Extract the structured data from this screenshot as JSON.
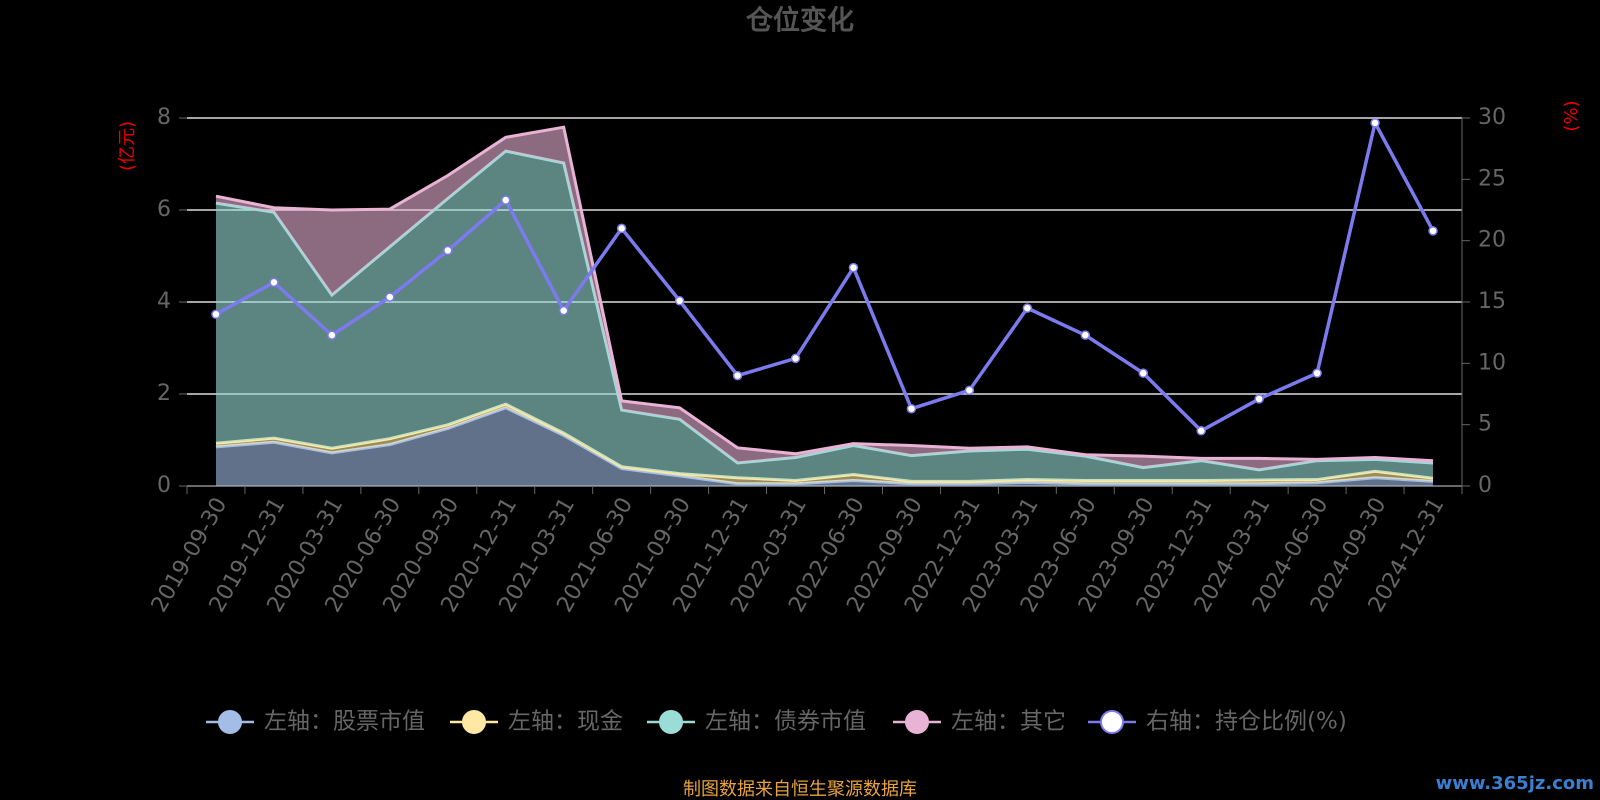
{
  "chart_data": {
    "type": "stacked-area-line",
    "title": "仓位变化",
    "y_axis_label": "(亿元)",
    "y2_axis_label": "(%)",
    "categories": [
      "2019-09-30",
      "2019-12-31",
      "2020-03-31",
      "2020-06-30",
      "2020-09-30",
      "2020-12-31",
      "2021-03-31",
      "2021-06-30",
      "2021-09-30",
      "2021-12-31",
      "2022-03-31",
      "2022-06-30",
      "2022-09-30",
      "2022-12-31",
      "2023-03-31",
      "2023-06-30",
      "2023-09-30",
      "2023-12-31",
      "2024-03-31",
      "2024-06-30",
      "2024-09-30",
      "2024-12-31"
    ],
    "series": [
      {
        "name": "左轴：股票市值",
        "color": "#a3bde6",
        "values": [
          0.85,
          0.95,
          0.72,
          0.9,
          1.25,
          1.7,
          1.1,
          0.38,
          0.22,
          0.05,
          0.05,
          0.12,
          0.05,
          0.05,
          0.08,
          0.05,
          0.05,
          0.05,
          0.05,
          0.07,
          0.18,
          0.1
        ]
      },
      {
        "name": "左轴：现金",
        "color": "#fde9a3",
        "values": [
          0.08,
          0.09,
          0.1,
          0.13,
          0.08,
          0.08,
          0.05,
          0.04,
          0.05,
          0.13,
          0.07,
          0.13,
          0.05,
          0.05,
          0.06,
          0.07,
          0.07,
          0.07,
          0.08,
          0.07,
          0.14,
          0.07
        ]
      },
      {
        "name": "左轴：债券市值",
        "color": "#9adcd6",
        "values": [
          5.22,
          4.91,
          3.33,
          4.17,
          4.92,
          5.5,
          5.87,
          1.23,
          1.18,
          0.32,
          0.5,
          0.63,
          0.56,
          0.66,
          0.66,
          0.53,
          0.28,
          0.43,
          0.22,
          0.41,
          0.26,
          0.33
        ]
      },
      {
        "name": "左轴：其它",
        "color": "#e9b3d6",
        "values": [
          0.15,
          0.1,
          1.85,
          0.82,
          0.5,
          0.3,
          0.78,
          0.2,
          0.25,
          0.33,
          0.08,
          0.04,
          0.22,
          0.06,
          0.05,
          0.03,
          0.25,
          0.05,
          0.25,
          0.03,
          0.04,
          0.05
        ]
      },
      {
        "name": "右轴：持仓比例(%)",
        "color": "#7b7bef",
        "axis": "y2",
        "values": [
          14.0,
          16.6,
          12.3,
          15.4,
          19.2,
          23.3,
          14.3,
          21.0,
          15.1,
          9.0,
          10.4,
          17.8,
          6.3,
          7.8,
          14.5,
          12.3,
          9.2,
          4.5,
          7.1,
          9.2,
          29.6,
          20.8
        ]
      }
    ],
    "ylim": [
      0,
      8
    ],
    "yticks": [
      0,
      2,
      4,
      6,
      8
    ],
    "y2lim": [
      0,
      30
    ],
    "y2ticks": [
      0,
      5,
      10,
      15,
      20,
      25,
      30
    ],
    "grid": true,
    "source": "制图数据来自恒生聚源数据库",
    "watermark": "www.365jz.com"
  }
}
